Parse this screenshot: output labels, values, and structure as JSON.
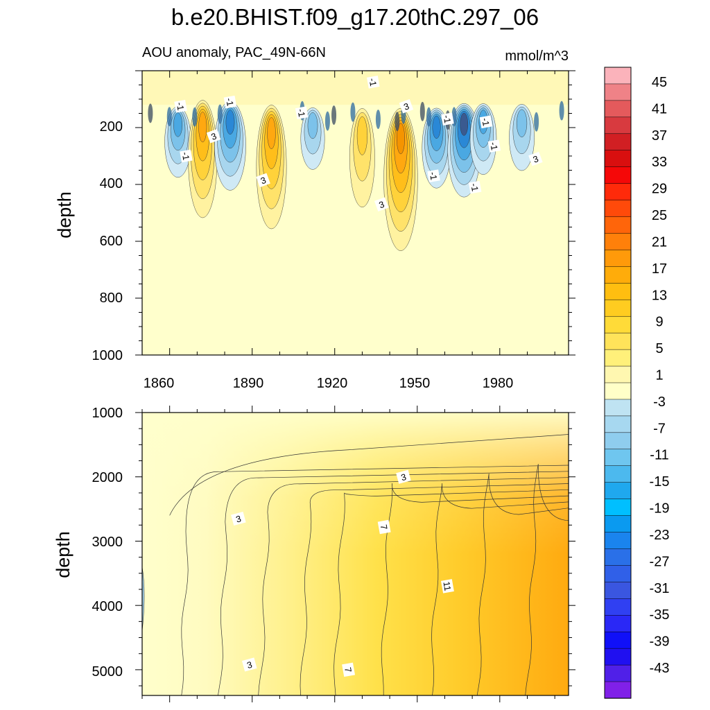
{
  "chart_data": {
    "type": "heatmap",
    "title": "b.e20.BHIST.f09_g17.20thC.297_06",
    "subtitle_left": "AOU anomaly, PAC_49N-66N",
    "units": "mmol/m^3",
    "colorbar": {
      "labels": [
        "45",
        "41",
        "37",
        "33",
        "29",
        "25",
        "21",
        "17",
        "13",
        "9",
        "5",
        "1",
        "-3",
        "-7",
        "-11",
        "-15",
        "-19",
        "-23",
        "-27",
        "-31",
        "-35",
        "-39",
        "-43"
      ],
      "colors": [
        "#fbb3bb",
        "#ef8287",
        "#e45a5c",
        "#d83a3f",
        "#d11f23",
        "#d90f0f",
        "#f50808",
        "#ff2a0a",
        "#ff4a0a",
        "#ff650a",
        "#ff800a",
        "#ff9a0a",
        "#ffac0a",
        "#ffbe10",
        "#ffcc20",
        "#ffdb38",
        "#ffe35a",
        "#fff07a",
        "#fff7b0",
        "#ffffc8",
        "#bfe3f2",
        "#a7d8f0",
        "#8fcdee",
        "#6fc6ef",
        "#4cb9ee",
        "#1fa8ee",
        "#00bfff",
        "#0a9af0",
        "#1a84ee",
        "#2a70e8",
        "#3060e8",
        "#3a56e0",
        "#3040f2",
        "#2a28f6",
        "#1010f8",
        "#2010f0",
        "#5020e8",
        "#8020e8"
      ]
    },
    "panels": [
      {
        "name": "upper",
        "xlabel": "",
        "ylabel": "depth",
        "xlim": [
          1850,
          2005
        ],
        "ylim": [
          0,
          1000
        ],
        "x_ticks": [
          "1860",
          "1890",
          "1920",
          "1950",
          "1980"
        ],
        "y_ticks": [
          "200",
          "400",
          "600",
          "800",
          "1000"
        ],
        "contour_labels": [
          "-1",
          "-1",
          "-1",
          "-1",
          "-1",
          "-1",
          "-1",
          "-1",
          "-1",
          "-1",
          "3",
          "3",
          "3",
          "3",
          "3"
        ],
        "features": [
          {
            "year": 1863,
            "depth": 170,
            "value": -10
          },
          {
            "year": 1872,
            "depth": 170,
            "value": 12
          },
          {
            "year": 1882,
            "depth": 160,
            "value": -14
          },
          {
            "year": 1897,
            "depth": 190,
            "value": 13
          },
          {
            "year": 1912,
            "depth": 170,
            "value": -8
          },
          {
            "year": 1930,
            "depth": 190,
            "value": 9
          },
          {
            "year": 1944,
            "depth": 210,
            "value": 16
          },
          {
            "year": 1957,
            "depth": 180,
            "value": -12
          },
          {
            "year": 1967,
            "depth": 170,
            "value": -15
          },
          {
            "year": 1974,
            "depth": 160,
            "value": -10
          },
          {
            "year": 1988,
            "depth": 160,
            "value": -9
          }
        ]
      },
      {
        "name": "lower",
        "xlabel": "",
        "ylabel": "depth",
        "xlim": [
          1850,
          2005
        ],
        "ylim": [
          1000,
          5400
        ],
        "y_ticks": [
          "1000",
          "2000",
          "3000",
          "4000",
          "5000"
        ],
        "contour_labels": [
          "3",
          "3",
          "3",
          "7",
          "7",
          "11"
        ],
        "profile": {
          "max_value": 15,
          "deep_trend": "increasing with time and depth"
        }
      }
    ]
  }
}
